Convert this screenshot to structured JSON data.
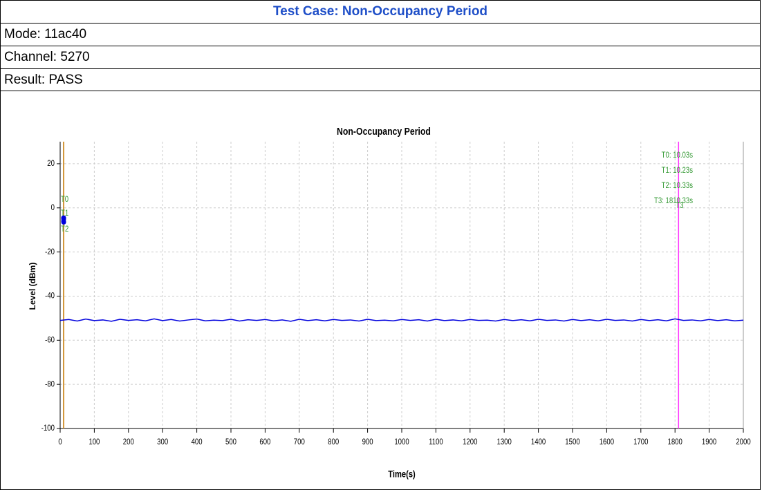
{
  "table": {
    "title": "Test Case: Non-Occupancy Period",
    "rows": [
      "Mode: 11ac40",
      "Channel: 5270",
      "Result: PASS"
    ]
  },
  "chart_data": {
    "type": "line",
    "title": "Non-Occupancy Period",
    "x_label": "Time(s)",
    "y_label": "Level (dBm)",
    "xlim": [
      0,
      2000
    ],
    "xticks": [
      0,
      100,
      200,
      300,
      400,
      500,
      600,
      700,
      800,
      900,
      1000,
      1100,
      1200,
      1300,
      1400,
      1500,
      1600,
      1700,
      1800,
      1900,
      2000
    ],
    "ylim": [
      -100,
      30
    ],
    "yticks": [
      -100,
      -80,
      -60,
      -40,
      -20,
      0,
      20
    ],
    "grid": true,
    "series": [
      {
        "color": "#0000dd",
        "mode": "line",
        "x": [
          0,
          25,
          50,
          75,
          100,
          125,
          150,
          175,
          200,
          225,
          250,
          275,
          300,
          325,
          350,
          375,
          400,
          425,
          450,
          475,
          500,
          525,
          550,
          575,
          600,
          625,
          650,
          675,
          700,
          725,
          750,
          775,
          800,
          825,
          850,
          875,
          900,
          925,
          950,
          975,
          1000,
          1025,
          1050,
          1075,
          1100,
          1125,
          1150,
          1175,
          1200,
          1225,
          1250,
          1275,
          1300,
          1325,
          1350,
          1375,
          1400,
          1425,
          1450,
          1475,
          1500,
          1525,
          1550,
          1575,
          1600,
          1625,
          1650,
          1675,
          1700,
          1725,
          1750,
          1775,
          1800,
          1825,
          1850,
          1875,
          1900,
          1925,
          1950,
          1975,
          2000
        ],
        "values": [
          -51,
          -50.6,
          -51.3,
          -50.4,
          -51.1,
          -50.8,
          -51.4,
          -50.5,
          -51,
          -50.7,
          -51.2,
          -50.3,
          -51.1,
          -50.6,
          -51.3,
          -50.8,
          -50.4,
          -51.2,
          -50.9,
          -51.1,
          -50.5,
          -51.3,
          -50.7,
          -51,
          -50.6,
          -51.2,
          -50.8,
          -51.4,
          -50.5,
          -51.1,
          -50.7,
          -51.2,
          -50.6,
          -51,
          -50.8,
          -51.3,
          -50.5,
          -51.1,
          -50.9,
          -51.2,
          -50.6,
          -51,
          -50.7,
          -51.3,
          -50.5,
          -51.1,
          -50.8,
          -51.2,
          -50.6,
          -51,
          -50.9,
          -51.3,
          -50.6,
          -51.1,
          -50.7,
          -51.2,
          -50.5,
          -51,
          -50.8,
          -51.3,
          -50.6,
          -51.1,
          -50.7,
          -51.2,
          -50.5,
          -51,
          -50.8,
          -51.3,
          -50.6,
          -51.1,
          -50.7,
          -51.2,
          -50.3,
          -51,
          -50.8,
          -51.2,
          -50.6,
          -51.1,
          -50.7,
          -51.2,
          -50.9
        ]
      },
      {
        "color": "#0000dd",
        "mode": "markers",
        "x": [
          10.03,
          10.13,
          10.23,
          10.33
        ],
        "values": [
          -6,
          -4.5,
          -5,
          -6.5
        ]
      }
    ],
    "markers": [
      {
        "name": "T0",
        "x": 10.03,
        "color": "#d09030",
        "annotation": "T0: 10.03s"
      },
      {
        "name": "T1",
        "x": 10.23,
        "color": "#d09030",
        "annotation": "T1: 10.23s"
      },
      {
        "name": "T2",
        "x": 10.33,
        "color": "#d09030",
        "annotation": "T2: 10.33s"
      },
      {
        "name": "T3",
        "x": 1810.33,
        "color": "#ff33ff",
        "annotation": "T3: 1810.33s"
      }
    ]
  }
}
